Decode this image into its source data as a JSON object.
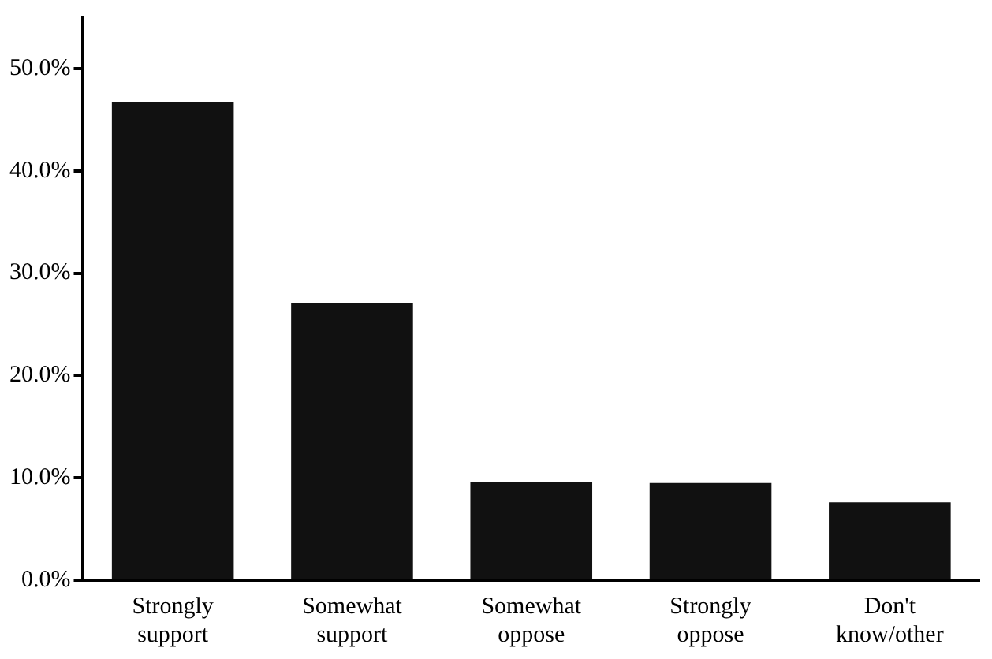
{
  "chart_data": {
    "type": "bar",
    "categories": [
      "Strongly support",
      "Somewhat support",
      "Somewhat oppose",
      "Strongly oppose",
      "Don't know/other"
    ],
    "values": [
      46.7,
      27.1,
      9.6,
      9.5,
      7.6
    ],
    "color": "#111111",
    "ylim": [
      0,
      55
    ],
    "yticks": [
      {
        "value": 0,
        "label": "0.0%"
      },
      {
        "value": 10,
        "label": "10.0%"
      },
      {
        "value": 20,
        "label": "20.0%"
      },
      {
        "value": 30,
        "label": "30.0%"
      },
      {
        "value": 40,
        "label": "40.0%"
      },
      {
        "value": 50,
        "label": "50.0%"
      }
    ],
    "grid": false,
    "legend": false
  }
}
